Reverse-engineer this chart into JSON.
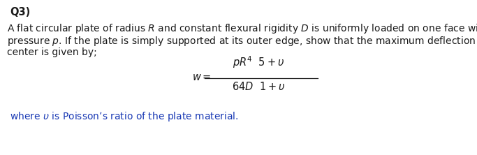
{
  "background_color": "#ffffff",
  "fig_width": 6.83,
  "fig_height": 2.22,
  "dpi": 100,
  "title": "Q3)",
  "title_fontsize": 10.5,
  "title_fontweight": "bold",
  "body_line1": "A flat circular plate of radius $R$ and constant flexural rigidity $D$ is uniformly loaded on one face with a",
  "body_line2": "pressure $p$. If the plate is simply supported at its outer edge, show that the maximum deflection at its",
  "body_line3": "center is given by;",
  "body_fontsize": 10.0,
  "equation_lhs": "$w=$",
  "equation_numerator": "$pR^4$  $5+\\upsilon$",
  "equation_denominator": "$64D$  $1+\\upsilon$",
  "equation_fontsize": 10.5,
  "footer_text": "where $\\upsilon$ is Poisson’s ratio of the plate material.",
  "footer_fontsize": 10.0,
  "footer_color": "#1a3ab5",
  "text_color": "#1a1a1a",
  "line_color": "#1a1a1a"
}
